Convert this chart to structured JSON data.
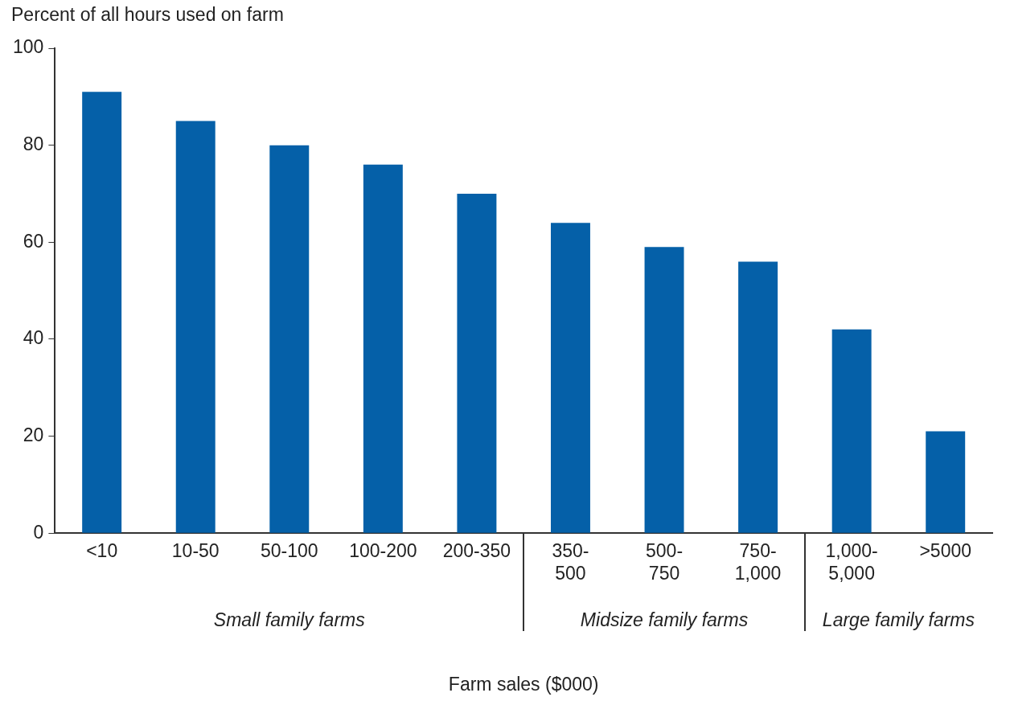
{
  "chart_data": {
    "type": "bar",
    "ylabel": "Percent of all hours used on farm",
    "xlabel": "Farm sales ($000)",
    "categories": [
      "<10",
      "10-50",
      "50-100",
      "100-200",
      "200-350",
      "350-500",
      "500-750",
      "750-1,000",
      "1,000-5,000",
      ">5000"
    ],
    "values": [
      91,
      85,
      80,
      76,
      70,
      64,
      59,
      56,
      42,
      21
    ],
    "color": "#0560a8",
    "ylim": [
      0,
      100
    ],
    "yticks": [
      0,
      20,
      40,
      60,
      80,
      100
    ],
    "grid": false,
    "legend": false,
    "annotations": [
      "Small family farms",
      "Midsize family farms",
      "Large family farms"
    ]
  }
}
